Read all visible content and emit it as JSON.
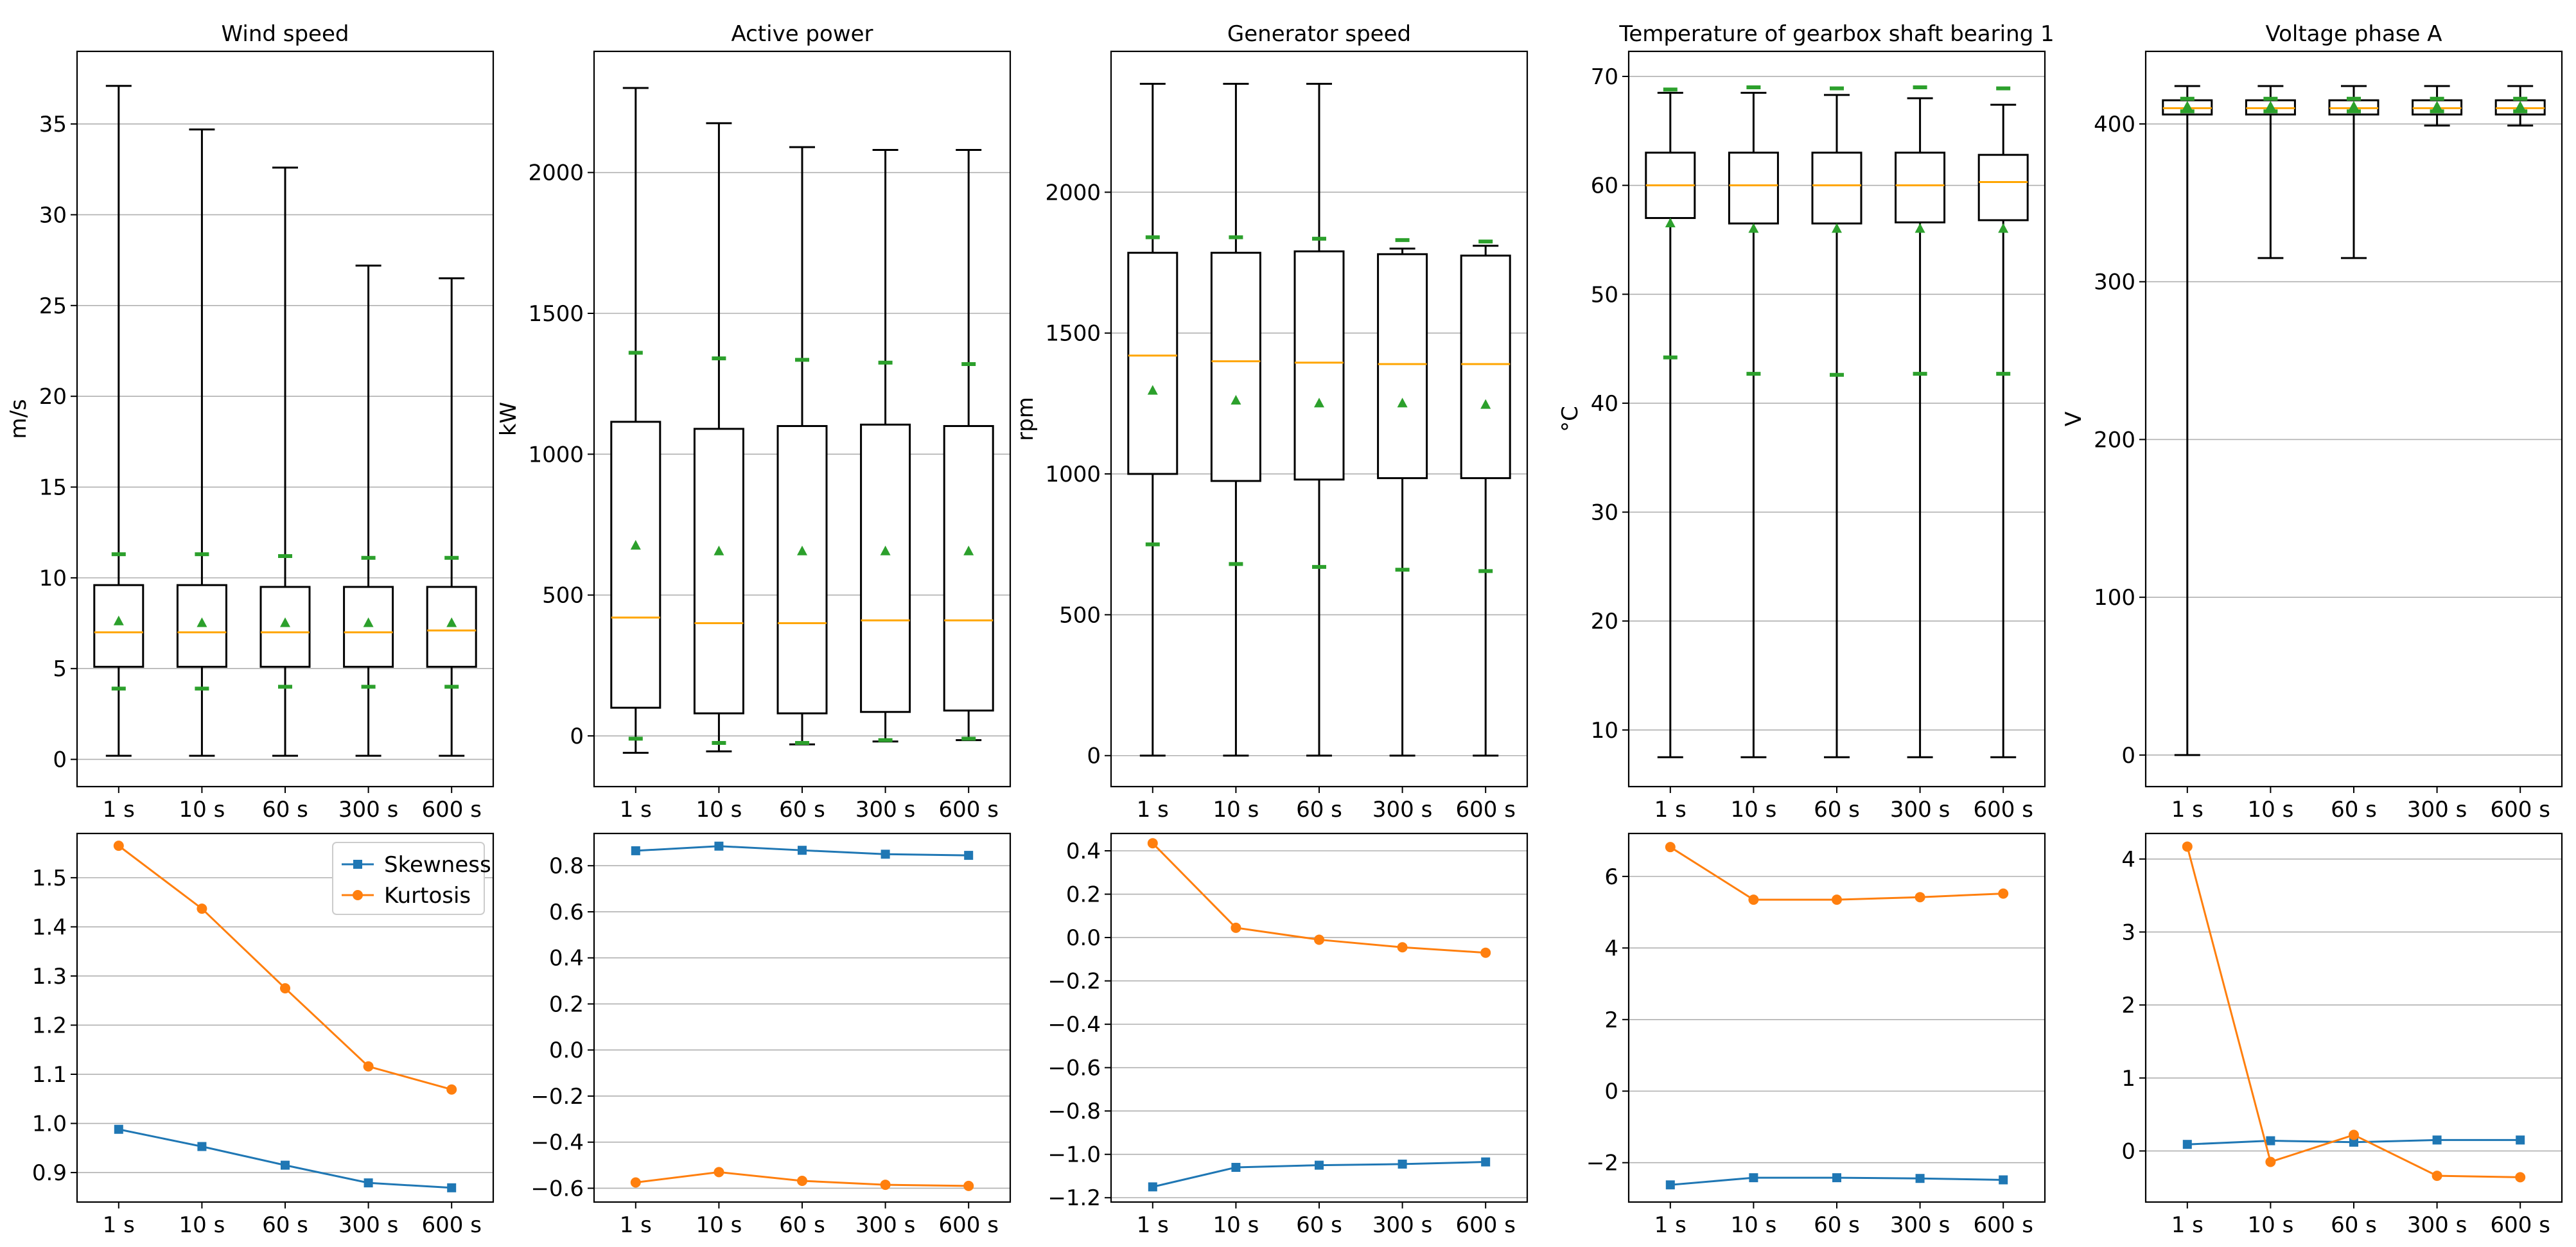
{
  "chart_data": {
    "type": "box",
    "categories": [
      "1 s",
      "10 s",
      "60 s",
      "300 s",
      "600 s"
    ],
    "colors": {
      "box_edge": "#000000",
      "median": "#ffa500",
      "mean_marker": "#2ca02c",
      "sd_marker": "#2ca02c",
      "skewness": "#1f77b4",
      "kurtosis": "#ff7f0e",
      "grid": "#b0b0b0"
    },
    "legend": [
      {
        "name": "Skewness",
        "color": "#1f77b4",
        "marker": "square"
      },
      {
        "name": "Kurtosis",
        "color": "#ff7f0e",
        "marker": "circle"
      }
    ],
    "panels": [
      {
        "title": "Wind speed",
        "ylabel": "m/s",
        "box": {
          "ylim": [
            -1.5,
            39.0
          ],
          "yticks": [
            0,
            5,
            10,
            15,
            20,
            25,
            30,
            35
          ],
          "stats": [
            {
              "min": 0.2,
              "q1": 5.1,
              "median": 7.0,
              "q3": 9.6,
              "max": 37.1,
              "mean": 7.6,
              "sd_low": 3.9,
              "sd_high": 11.3
            },
            {
              "min": 0.2,
              "q1": 5.1,
              "median": 7.0,
              "q3": 9.6,
              "max": 34.7,
              "mean": 7.5,
              "sd_low": 3.9,
              "sd_high": 11.3
            },
            {
              "min": 0.2,
              "q1": 5.1,
              "median": 7.0,
              "q3": 9.5,
              "max": 32.6,
              "mean": 7.5,
              "sd_low": 4.0,
              "sd_high": 11.2
            },
            {
              "min": 0.2,
              "q1": 5.1,
              "median": 7.0,
              "q3": 9.5,
              "max": 27.2,
              "mean": 7.5,
              "sd_low": 4.0,
              "sd_high": 11.1
            },
            {
              "min": 0.2,
              "q1": 5.1,
              "median": 7.1,
              "q3": 9.5,
              "max": 26.5,
              "mean": 7.5,
              "sd_low": 4.0,
              "sd_high": 11.1
            }
          ]
        },
        "moments": {
          "ylim": [
            0.84,
            1.59
          ],
          "yticks": [
            0.9,
            1.0,
            1.1,
            1.2,
            1.3,
            1.4,
            1.5
          ],
          "skewness": [
            0.988,
            0.953,
            0.915,
            0.879,
            0.869
          ],
          "kurtosis": [
            1.565,
            1.437,
            1.275,
            1.116,
            1.069
          ],
          "legend": true
        }
      },
      {
        "title": "Active power",
        "ylabel": "kW",
        "box": {
          "ylim": [
            -180,
            2430
          ],
          "yticks": [
            0,
            500,
            1000,
            1500,
            2000
          ],
          "stats": [
            {
              "min": -60,
              "q1": 100,
              "median": 420,
              "q3": 1115,
              "max": 2300,
              "mean": 675,
              "sd_low": -10,
              "sd_high": 1360
            },
            {
              "min": -55,
              "q1": 80,
              "median": 400,
              "q3": 1090,
              "max": 2175,
              "mean": 655,
              "sd_low": -25,
              "sd_high": 1340
            },
            {
              "min": -30,
              "q1": 80,
              "median": 400,
              "q3": 1100,
              "max": 2090,
              "mean": 655,
              "sd_low": -25,
              "sd_high": 1335
            },
            {
              "min": -20,
              "q1": 85,
              "median": 410,
              "q3": 1105,
              "max": 2080,
              "mean": 655,
              "sd_low": -15,
              "sd_high": 1325
            },
            {
              "min": -15,
              "q1": 90,
              "median": 410,
              "q3": 1100,
              "max": 2080,
              "mean": 655,
              "sd_low": -10,
              "sd_high": 1320
            }
          ]
        },
        "moments": {
          "ylim": [
            -0.66,
            0.94
          ],
          "yticks": [
            -0.6,
            -0.4,
            -0.2,
            0.0,
            0.2,
            0.4,
            0.6,
            0.8
          ],
          "skewness": [
            0.865,
            0.885,
            0.867,
            0.85,
            0.845
          ],
          "kurtosis": [
            -0.575,
            -0.53,
            -0.568,
            -0.585,
            -0.59
          ],
          "legend": false
        }
      },
      {
        "title": "Generator speed",
        "ylabel": "rpm",
        "box": {
          "ylim": [
            -110,
            2500
          ],
          "yticks": [
            0,
            500,
            1000,
            1500,
            2000
          ],
          "stats": [
            {
              "min": 0,
              "q1": 1000,
              "median": 1420,
              "q3": 1785,
              "max": 2385,
              "mean": 1295,
              "sd_low": 750,
              "sd_high": 1840
            },
            {
              "min": 0,
              "q1": 975,
              "median": 1400,
              "q3": 1785,
              "max": 2385,
              "mean": 1260,
              "sd_low": 680,
              "sd_high": 1840
            },
            {
              "min": 0,
              "q1": 980,
              "median": 1395,
              "q3": 1790,
              "max": 2385,
              "mean": 1250,
              "sd_low": 670,
              "sd_high": 1835
            },
            {
              "min": 0,
              "q1": 985,
              "median": 1390,
              "q3": 1780,
              "max": 1800,
              "mean": 1250,
              "sd_low": 660,
              "sd_high": 1830
            },
            {
              "min": 0,
              "q1": 985,
              "median": 1390,
              "q3": 1775,
              "max": 1810,
              "mean": 1245,
              "sd_low": 655,
              "sd_high": 1825
            }
          ]
        },
        "moments": {
          "ylim": [
            -1.22,
            0.48
          ],
          "yticks": [
            -1.2,
            -1.0,
            -0.8,
            -0.6,
            -0.4,
            -0.2,
            0.0,
            0.2,
            0.4
          ],
          "skewness": [
            -1.15,
            -1.06,
            -1.05,
            -1.045,
            -1.035
          ],
          "kurtosis": [
            0.435,
            0.045,
            -0.01,
            -0.045,
            -0.07
          ],
          "legend": false
        }
      },
      {
        "title": "Temperature of gearbox shaft bearing 1",
        "ylabel": "°C",
        "box": {
          "ylim": [
            4.8,
            72.3
          ],
          "yticks": [
            10,
            20,
            30,
            40,
            50,
            60,
            70
          ],
          "stats": [
            {
              "min": 7.5,
              "q1": 57.0,
              "median": 60.0,
              "q3": 63.0,
              "max": 68.5,
              "mean": 56.5,
              "sd_low": 44.2,
              "sd_high": 68.8
            },
            {
              "min": 7.5,
              "q1": 56.5,
              "median": 60.0,
              "q3": 63.0,
              "max": 68.5,
              "mean": 56.0,
              "sd_low": 42.7,
              "sd_high": 69.0
            },
            {
              "min": 7.5,
              "q1": 56.5,
              "median": 60.0,
              "q3": 63.0,
              "max": 68.3,
              "mean": 56.0,
              "sd_low": 42.6,
              "sd_high": 68.9
            },
            {
              "min": 7.5,
              "q1": 56.6,
              "median": 60.0,
              "q3": 63.0,
              "max": 68.0,
              "mean": 56.0,
              "sd_low": 42.7,
              "sd_high": 69.0
            },
            {
              "min": 7.5,
              "q1": 56.8,
              "median": 60.3,
              "q3": 62.8,
              "max": 67.4,
              "mean": 56.0,
              "sd_low": 42.7,
              "sd_high": 68.9
            }
          ]
        },
        "moments": {
          "ylim": [
            -3.1,
            7.2
          ],
          "yticks": [
            -2,
            0,
            2,
            4,
            6
          ],
          "skewness": [
            -2.62,
            -2.42,
            -2.42,
            -2.44,
            -2.48
          ],
          "kurtosis": [
            6.82,
            5.35,
            5.35,
            5.42,
            5.52
          ],
          "legend": false
        }
      },
      {
        "title": "Voltage phase A",
        "ylabel": "V",
        "box": {
          "ylim": [
            -20,
            446
          ],
          "yticks": [
            0,
            100,
            200,
            300,
            400
          ],
          "stats": [
            {
              "min": 0,
              "q1": 406,
              "median": 410,
              "q3": 415,
              "max": 424,
              "mean": 411,
              "sd_low": 408,
              "sd_high": 416
            },
            {
              "min": 315,
              "q1": 406,
              "median": 410,
              "q3": 415,
              "max": 424,
              "mean": 411,
              "sd_low": 408,
              "sd_high": 416
            },
            {
              "min": 315,
              "q1": 406,
              "median": 410,
              "q3": 415,
              "max": 424,
              "mean": 411,
              "sd_low": 408,
              "sd_high": 416
            },
            {
              "min": 399,
              "q1": 406,
              "median": 410,
              "q3": 415,
              "max": 424,
              "mean": 411,
              "sd_low": 408,
              "sd_high": 416
            },
            {
              "min": 399,
              "q1": 406,
              "median": 410,
              "q3": 415,
              "max": 424,
              "mean": 411,
              "sd_low": 408,
              "sd_high": 416
            }
          ]
        },
        "moments": {
          "ylim": [
            -0.7,
            4.35
          ],
          "yticks": [
            0,
            1,
            2,
            3,
            4
          ],
          "skewness": [
            0.09,
            0.14,
            0.12,
            0.15,
            0.15
          ],
          "kurtosis": [
            4.17,
            -0.15,
            0.22,
            -0.34,
            -0.36
          ],
          "legend": false
        }
      }
    ]
  }
}
